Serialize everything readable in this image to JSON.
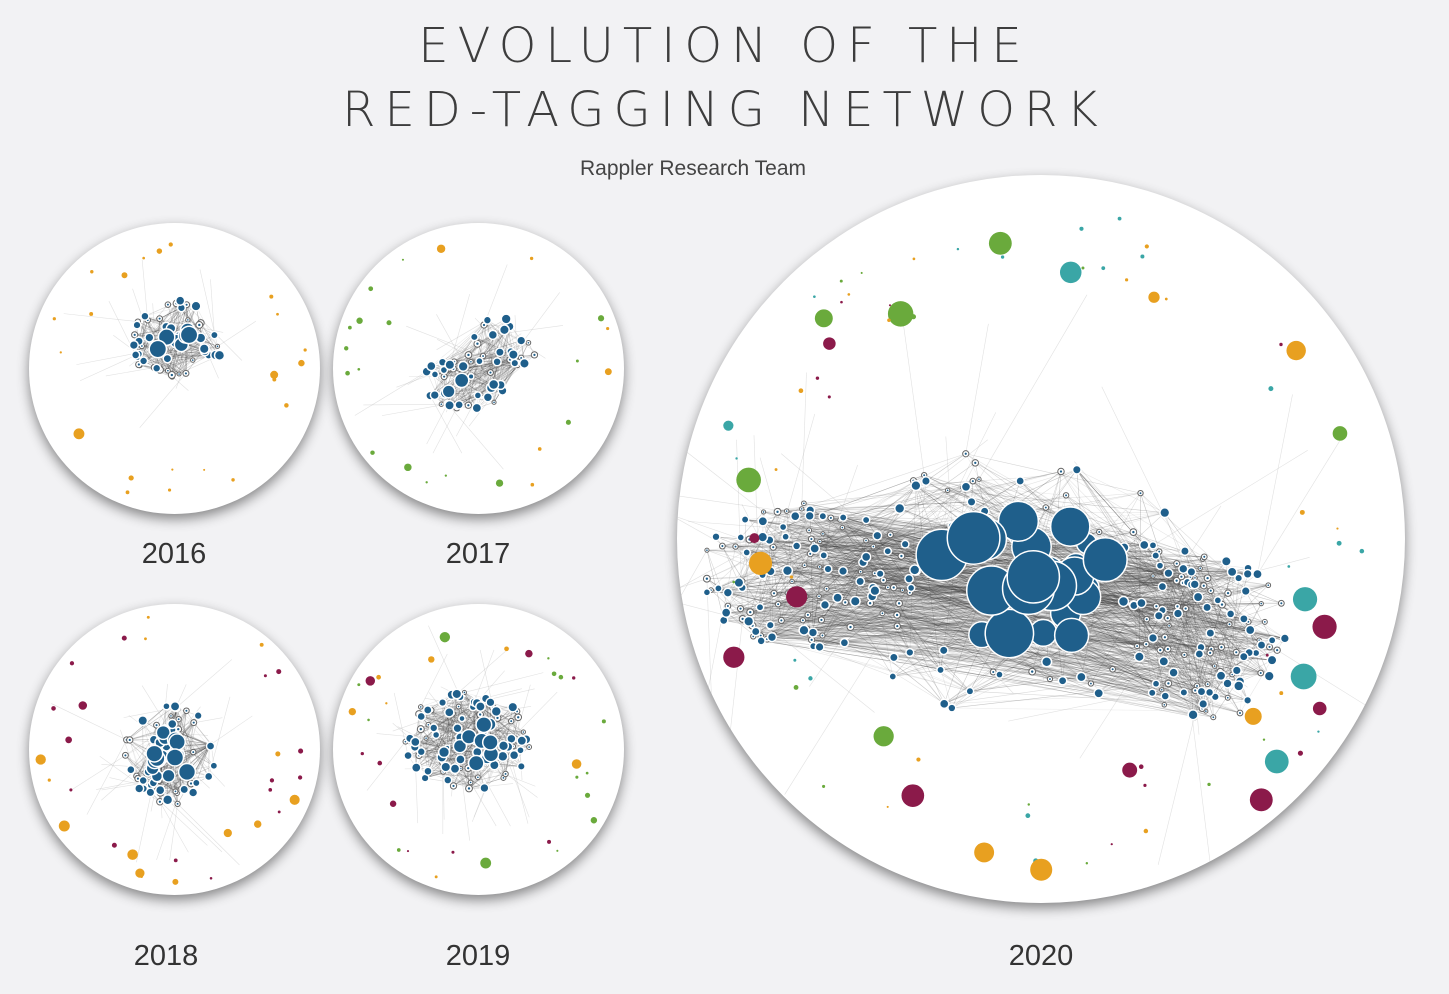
{
  "header": {
    "title_line_1": "EVOLUTION OF THE",
    "title_line_2": "RED-TAGGING NETWORK",
    "subtitle": "Rappler Research Team"
  },
  "colors": {
    "background": "#f2f2f4",
    "core_nodes": "#1f5f8b",
    "peripheral_green": "#6aaa3c",
    "peripheral_orange": "#e8a020",
    "peripheral_maroon": "#8b1a4a",
    "peripheral_teal": "#3aa6a6",
    "edges": "#3a3a3a"
  },
  "panels": [
    {
      "year": "2016",
      "core_density": "sparse",
      "peripheral_colors": [
        "orange"
      ]
    },
    {
      "year": "2017",
      "core_density": "sparse",
      "peripheral_colors": [
        "orange",
        "green"
      ]
    },
    {
      "year": "2018",
      "core_density": "medium",
      "peripheral_colors": [
        "orange",
        "maroon"
      ]
    },
    {
      "year": "2019",
      "core_density": "medium",
      "peripheral_colors": [
        "green",
        "orange",
        "maroon"
      ]
    },
    {
      "year": "2020",
      "core_density": "dense",
      "peripheral_colors": [
        "green",
        "orange",
        "maroon",
        "teal"
      ]
    }
  ]
}
